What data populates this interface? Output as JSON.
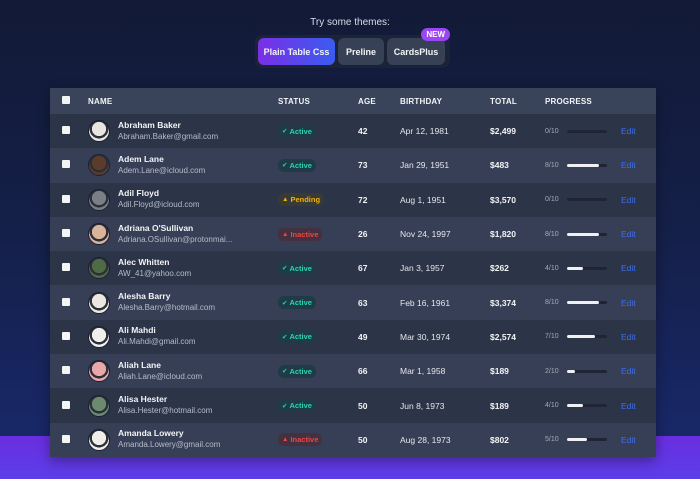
{
  "theme_selector": {
    "title": "Try some themes:",
    "options": [
      {
        "label": "Plain Table Css",
        "active": true
      },
      {
        "label": "Preline",
        "active": false
      },
      {
        "label": "CardsPlus",
        "active": false,
        "badge": "NEW"
      }
    ]
  },
  "table": {
    "headers": {
      "name": "NAME",
      "status": "STATUS",
      "age": "AGE",
      "birthday": "BIRTHDAY",
      "total": "TOTAL",
      "progress": "PROGRESS"
    },
    "edit_label": "Edit",
    "rows": [
      {
        "name": "Abraham Baker",
        "email": "Abraham.Baker@gmail.com",
        "status": "Active",
        "age": "42",
        "birthday": "Apr 12, 1981",
        "total": "$2,499",
        "progress": "0/10",
        "progress_value": 0,
        "avatar_color": "#e8e4df"
      },
      {
        "name": "Adem Lane",
        "email": "Adem.Lane@icloud.com",
        "status": "Active",
        "age": "73",
        "birthday": "Jan 29, 1951",
        "total": "$483",
        "progress": "8/10",
        "progress_value": 8,
        "avatar_color": "#5a3b2c"
      },
      {
        "name": "Adil Floyd",
        "email": "Adil.Floyd@icloud.com",
        "status": "Pending",
        "age": "72",
        "birthday": "Aug 1, 1951",
        "total": "$3,570",
        "progress": "0/10",
        "progress_value": 0,
        "avatar_color": "#7a7f86"
      },
      {
        "name": "Adriana O'Sullivan",
        "email": "Adriana.OSullivan@protonmai...",
        "status": "Inactive",
        "age": "26",
        "birthday": "Nov 24, 1997",
        "total": "$1,820",
        "progress": "8/10",
        "progress_value": 8,
        "avatar_color": "#d9b49a"
      },
      {
        "name": "Alec Whitten",
        "email": "AW_41@yahoo.com",
        "status": "Active",
        "age": "67",
        "birthday": "Jan 3, 1957",
        "total": "$262",
        "progress": "4/10",
        "progress_value": 4,
        "avatar_color": "#4f6b45"
      },
      {
        "name": "Alesha Barry",
        "email": "Alesha.Barry@hotmail.com",
        "status": "Active",
        "age": "63",
        "birthday": "Feb 16, 1961",
        "total": "$3,374",
        "progress": "8/10",
        "progress_value": 8,
        "avatar_color": "#ece6e1"
      },
      {
        "name": "Ali Mahdi",
        "email": "Ali.Mahdi@gmail.com",
        "status": "Active",
        "age": "49",
        "birthday": "Mar 30, 1974",
        "total": "$2,574",
        "progress": "7/10",
        "progress_value": 7,
        "avatar_color": "#f1efec"
      },
      {
        "name": "Aliah Lane",
        "email": "Aliah.Lane@icloud.com",
        "status": "Active",
        "age": "66",
        "birthday": "Mar 1, 1958",
        "total": "$189",
        "progress": "2/10",
        "progress_value": 2,
        "avatar_color": "#e9a7a8"
      },
      {
        "name": "Alisa Hester",
        "email": "Alisa.Hester@hotmail.com",
        "status": "Active",
        "age": "50",
        "birthday": "Jun 8, 1973",
        "total": "$189",
        "progress": "4/10",
        "progress_value": 4,
        "avatar_color": "#6b8a70"
      },
      {
        "name": "Amanda Lowery",
        "email": "Amanda.Lowery@gmail.com",
        "status": "Inactive",
        "age": "50",
        "birthday": "Aug 28, 1973",
        "total": "$802",
        "progress": "5/10",
        "progress_value": 5,
        "avatar_color": "#efecea"
      }
    ]
  },
  "colors": {
    "active": "#2dd4b0",
    "pending": "#eab308",
    "inactive": "#ef4444",
    "edit_link": "#3b6ff0",
    "theme_active_gradient": [
      "#7a2fe6",
      "#3a5cf0"
    ],
    "new_badge": "#9b46f2"
  },
  "icons": {
    "active": "check-circle-icon",
    "pending": "warning-triangle-icon",
    "inactive": "warning-triangle-icon"
  }
}
